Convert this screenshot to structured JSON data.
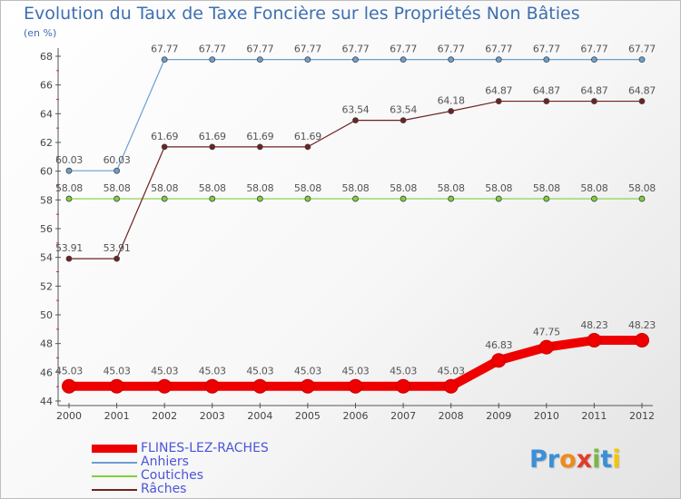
{
  "title": "Evolution du Taux de Taxe Foncière sur les Propriétés Non Bâties",
  "unit": "(en %)",
  "logo": {
    "letters": [
      "P",
      "r",
      "o",
      "x",
      "i",
      "t",
      "i"
    ],
    "colors": [
      "#3a8fd8",
      "#3a8fd8",
      "#f08a1c",
      "#e23b2a",
      "#7ab648",
      "#3a8fd8",
      "#f5c400"
    ]
  },
  "chart_data": {
    "type": "line",
    "x": [
      "2000",
      "2001",
      "2002",
      "2003",
      "2004",
      "2005",
      "2006",
      "2007",
      "2008",
      "2009",
      "2010",
      "2011",
      "2012"
    ],
    "ylim": [
      44,
      68
    ],
    "yticks": [
      44,
      46,
      48,
      50,
      52,
      54,
      56,
      58,
      60,
      62,
      64,
      66,
      68
    ],
    "grid": false,
    "legend_position": "bottom-left",
    "series": [
      {
        "name": "FLINES-LEZ-RACHES",
        "color": "#ee0000",
        "values": [
          45.03,
          45.03,
          45.03,
          45.03,
          45.03,
          45.03,
          45.03,
          45.03,
          45.03,
          46.83,
          47.75,
          48.23,
          48.23
        ],
        "labels": [
          "45.03",
          "45.03",
          "45.03",
          "45.03",
          "45.03",
          "45.03",
          "45.03",
          "45.03",
          "45.03",
          "46.83",
          "47.75",
          "48.23",
          "48.23"
        ]
      },
      {
        "name": "Anhiers",
        "color": "#6a9fd0",
        "values": [
          60.03,
          60.03,
          67.77,
          67.77,
          67.77,
          67.77,
          67.77,
          67.77,
          67.77,
          67.77,
          67.77,
          67.77,
          67.77
        ],
        "labels": [
          "60.03",
          "60.03",
          "67.77",
          "67.77",
          "67.77",
          "67.77",
          "67.77",
          "67.77",
          "67.77",
          "67.77",
          "67.77",
          "67.77",
          "67.77"
        ]
      },
      {
        "name": "Coutiches",
        "color": "#7fd03c",
        "values": [
          58.08,
          58.08,
          58.08,
          58.08,
          58.08,
          58.08,
          58.08,
          58.08,
          58.08,
          58.08,
          58.08,
          58.08,
          58.08
        ],
        "labels": [
          "58.08",
          "58.08",
          "58.08",
          "58.08",
          "58.08",
          "58.08",
          "58.08",
          "58.08",
          "58.08",
          "58.08",
          "58.08",
          "58.08",
          "58.08"
        ]
      },
      {
        "name": "Râches",
        "color": "#6e2222",
        "values": [
          53.91,
          53.91,
          61.69,
          61.69,
          61.69,
          61.69,
          63.54,
          63.54,
          64.18,
          64.87,
          64.87,
          64.87,
          64.87
        ],
        "labels": [
          "53.91",
          "53.91",
          "61.69",
          "61.69",
          "61.69",
          "61.69",
          "63.54",
          "63.54",
          "64.18",
          "64.87",
          "64.87",
          "64.87",
          "64.87"
        ]
      }
    ]
  }
}
